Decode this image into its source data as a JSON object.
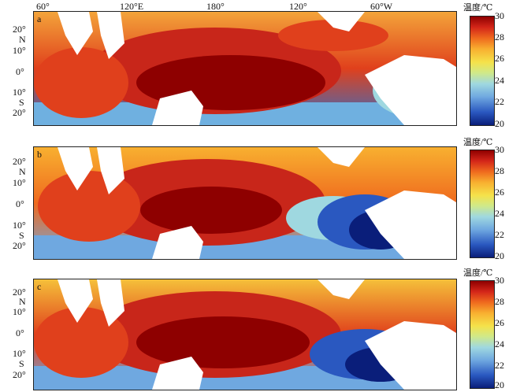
{
  "longitude_ticks": [
    "60°",
    "120°E",
    "180°",
    "120°",
    "60°W"
  ],
  "latitude_ticks": [
    "20°",
    "N",
    "10°",
    "0°",
    "10°",
    "S",
    "20°"
  ],
  "panels": [
    {
      "label": "a",
      "colorbar_title": "温度/℃",
      "colorbar_ticks": [
        "30",
        "28",
        "26",
        "24",
        "22",
        "20"
      ]
    },
    {
      "label": "b",
      "colorbar_title": "温度/℃",
      "colorbar_ticks": [
        "30",
        "28",
        "26",
        "24",
        "22",
        "20"
      ]
    },
    {
      "label": "c",
      "colorbar_title": "温度/℃",
      "colorbar_ticks": [
        "30",
        "28",
        "26",
        "24",
        "22",
        "20"
      ]
    }
  ],
  "colors": {
    "warmest": "#8e0000",
    "warm": "#d42619",
    "orange": "#ef6a1e",
    "yellow": "#f5e24a",
    "cool": "#6fa8e0",
    "coldest": "#0a1e7a",
    "land": "#ffffff"
  }
}
